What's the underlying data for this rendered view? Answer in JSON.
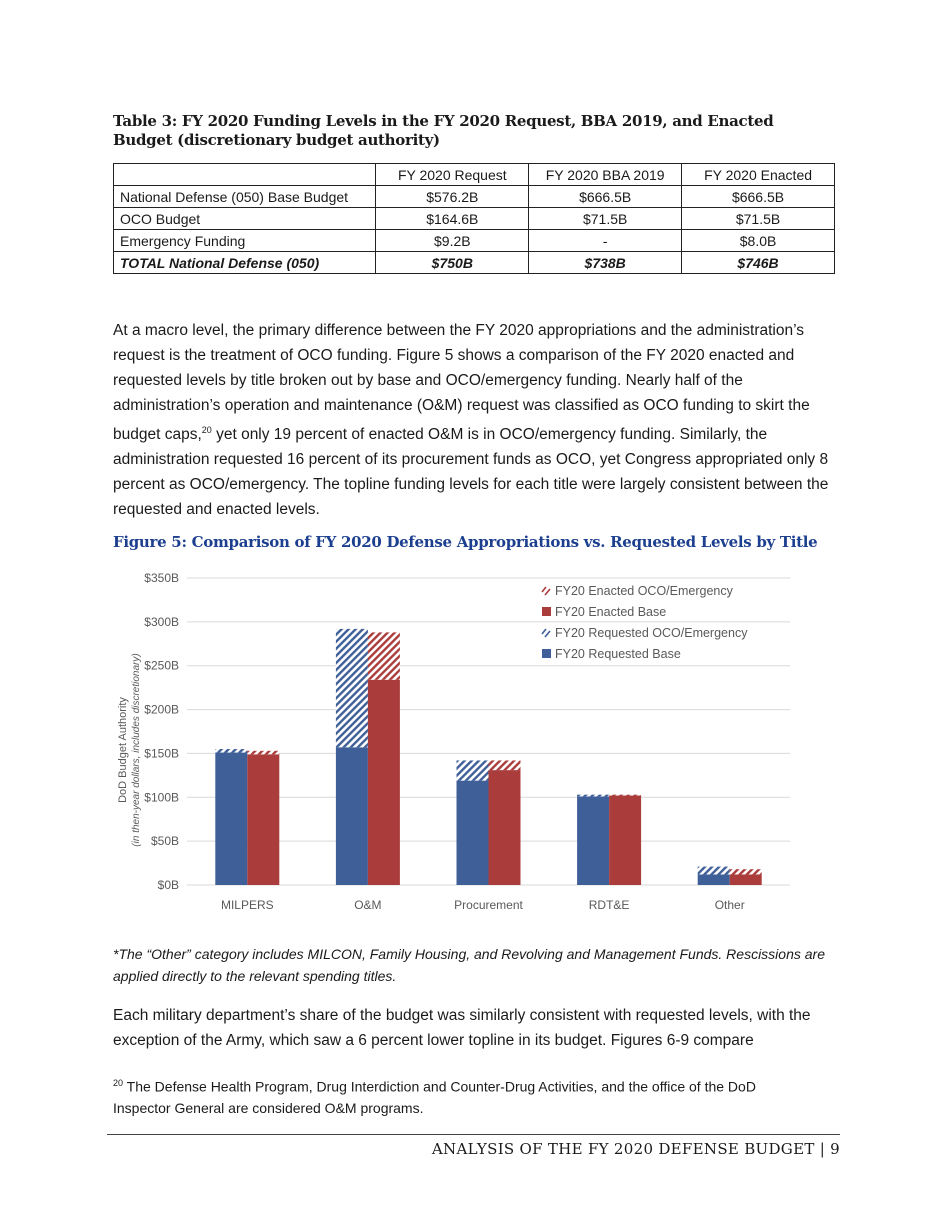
{
  "table": {
    "title": "Table 3: FY 2020 Funding Levels in the FY 2020 Request, BBA 2019, and Enacted Budget (discretionary budget authority)",
    "headers": [
      "",
      "FY 2020 Request",
      "FY 2020 BBA 2019",
      "FY 2020 Enacted"
    ],
    "rows": [
      [
        "National Defense (050) Base Budget",
        "$576.2B",
        "$666.5B",
        "$666.5B"
      ],
      [
        "OCO Budget",
        "$164.6B",
        "$71.5B",
        "$71.5B"
      ],
      [
        "Emergency Funding",
        "$9.2B",
        "-",
        "$8.0B"
      ],
      [
        "TOTAL National Defense (050)",
        "$750B",
        "$738B",
        "$746B"
      ]
    ]
  },
  "paragraph1": {
    "before_sup": "At a macro level, the primary difference between the FY 2020 appropriations and the administration’s request is the treatment of OCO funding. Figure 5 shows a comparison of the FY 2020 enacted and requested levels by title broken out by base and OCO/emergency funding. Nearly half of the administration’s operation and maintenance (O&M) request was classified as OCO funding to skirt the budget caps,",
    "sup": "20",
    "after_sup": " yet only 19 percent of enacted O&M is in OCO/emergency funding. Similarly, the administration requested 16 percent of its procurement funds as OCO, yet Congress appropriated only 8 percent as OCO/emergency. The topline funding levels for each title were largely consistent between the requested and enacted levels."
  },
  "figure_title": "Figure 5: Comparison of FY 2020 Defense Appropriations vs. Requested Levels by Title",
  "chart_data": {
    "type": "bar",
    "stacked": true,
    "categories": [
      "MILPERS",
      "O&M",
      "Procurement",
      "RDT&E",
      "Other"
    ],
    "ylabel": "DoD Budget Authority",
    "ylabel_sub": "(in then-year dollars, includes discretionary)",
    "ylim": [
      0,
      350
    ],
    "yticks": [
      "$0B",
      "$50B",
      "$100B",
      "$150B",
      "$200B",
      "$250B",
      "$300B",
      "$350B"
    ],
    "grid": true,
    "legend_position": "top-right",
    "legend": [
      "FY20 Enacted OCO/Emergency",
      "FY20 Enacted Base",
      "FY20 Requested OCO/Emergency",
      "FY20 Requested Base"
    ],
    "series": [
      {
        "name": "FY20 Requested Base",
        "values": [
          151,
          157,
          119,
          101,
          12
        ],
        "color": "#3f5f98",
        "group": "requested",
        "hatched": false
      },
      {
        "name": "FY20 Requested OCO/Emergency",
        "values": [
          4,
          135,
          23,
          2,
          9
        ],
        "color": "#3f5f98",
        "group": "requested",
        "hatched": true
      },
      {
        "name": "FY20 Enacted Base",
        "values": [
          149,
          234,
          131,
          102,
          12
        ],
        "color": "#ab3c3c",
        "group": "enacted",
        "hatched": false
      },
      {
        "name": "FY20 Enacted OCO/Emergency",
        "values": [
          4,
          54,
          11,
          1,
          6
        ],
        "color": "#ab3c3c",
        "group": "enacted",
        "hatched": true
      }
    ]
  },
  "figure_note": "*The “Other” category includes MILCON, Family Housing, and Revolving and Management Funds. Rescissions are applied directly to the relevant spending titles.",
  "paragraph2": "Each military department’s share of the budget was similarly consistent with requested levels, with the exception of the Army, which saw a 6 percent lower topline in its budget. Figures 6-9 compare",
  "footnote": {
    "number": "20",
    "text": " The Defense Health Program, Drug Interdiction and Counter-Drug Activities, and the office of the DoD Inspector General are considered O&M programs."
  },
  "footer": {
    "title": "ANALYSIS OF THE FY 2020 DEFENSE BUDGET",
    "separator": "|",
    "page": "9"
  }
}
